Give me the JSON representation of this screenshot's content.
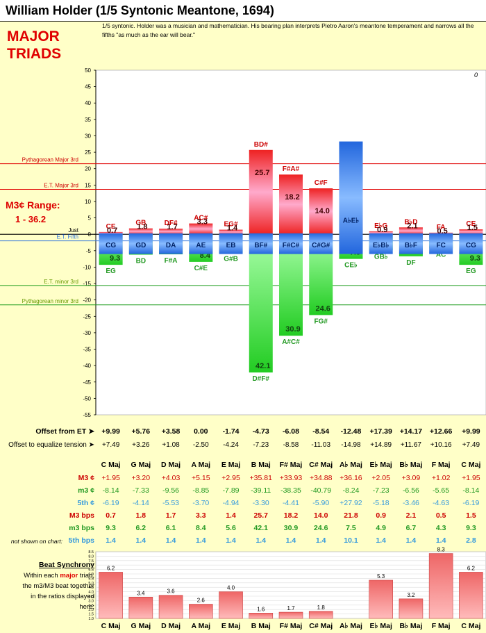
{
  "title": "William Holder (1/5 Syntonic Meantone, 1694)",
  "description": "1/5 syntonic. Holder was a musician and mathematician. His bearing plan interprets Pietro Aaron's meantone temperament and narrows all the fifths \"as much as the ear will bear.\"",
  "section_label": [
    "MAJOR",
    "TRIADS"
  ],
  "range_label": {
    "title": "M3¢ Range:",
    "value": "1 - 36.2"
  },
  "corner_value": "0",
  "colors": {
    "major": "#e00000",
    "minor": "#1a9a1a",
    "fifth": "#3377dd",
    "bg": "#ffffc8"
  },
  "chart_data": [
    {
      "type": "bar",
      "ylim": [
        -55,
        50
      ],
      "yticks": [
        "50",
        "45",
        "40",
        "35",
        "30",
        "25",
        "20",
        "15",
        "10",
        "5",
        "0",
        "-5",
        "-10",
        "-15",
        "-20",
        "-25",
        "-30",
        "-35",
        "-40",
        "-45",
        "-50",
        "-55"
      ],
      "reference_lines": [
        {
          "label": "Pythagorean Major 3rd",
          "value": 21.5,
          "kind": "major"
        },
        {
          "label": "E.T. Major 3rd",
          "value": 13.7,
          "kind": "major"
        },
        {
          "label": "Just",
          "value": 0,
          "kind": "just"
        },
        {
          "label": "E.T. Fifth",
          "value": -2,
          "kind": "fifth"
        },
        {
          "label": "E.T. minor 3rd",
          "value": -15.6,
          "kind": "minor"
        },
        {
          "label": "Pythagorean minor 3rd",
          "value": -21.5,
          "kind": "minor"
        }
      ],
      "categories": [
        "C Maj",
        "G Maj",
        "D Maj",
        "A Maj",
        "E Maj",
        "B Maj",
        "F# Maj",
        "C# Maj",
        "A♭ Maj",
        "E♭ Maj",
        "B♭ Maj",
        "F Maj",
        "C Maj"
      ],
      "major_third_labels": [
        "CE",
        "GB",
        "DF#",
        "AC#",
        "EG#",
        "BD#",
        "F#A#",
        "C#F",
        "A♭C",
        "E♭G",
        "B♭D",
        "FA",
        "CE"
      ],
      "minor_third_labels": [
        "EG",
        "BD",
        "F#A",
        "C#E",
        "G#B",
        "D#F#",
        "A#C#",
        "FG#",
        "CE♭",
        "GB♭",
        "DF",
        "AC",
        "EG"
      ],
      "fifth_labels": [
        "CG",
        "GD",
        "DA",
        "AE",
        "EB",
        "BF#",
        "F#C#",
        "C#G#",
        "A♭E♭",
        "E♭B♭",
        "B♭F",
        "FC",
        "CG"
      ],
      "major_third_beats": [
        0.7,
        1.8,
        1.7,
        3.3,
        1.4,
        25.7,
        18.2,
        14.0,
        21.8,
        0.9,
        2.1,
        0.5,
        1.5
      ],
      "minor_third_beats": [
        9.3,
        6.2,
        6.1,
        8.4,
        5.6,
        42.1,
        30.9,
        24.6,
        7.5,
        4.9,
        6.7,
        4.3,
        9.3
      ],
      "major_third_beat_labels": [
        "0.7",
        "1.8",
        "1.7",
        "3.3",
        "1.4",
        "25.7",
        "18.2",
        "14.0",
        "21.8",
        "0.9",
        "2.1",
        "0.5",
        "1.5"
      ],
      "minor_third_beat_labels": [
        "9.3",
        "6.2",
        "6.1",
        "8.4",
        "5.6",
        "42.1",
        "30.9",
        "24.6",
        "7.5",
        "4.9",
        "6.7",
        "4.3",
        "9.3"
      ],
      "major_third_cents": [
        1.95,
        3.2,
        4.03,
        5.15,
        2.95,
        35.81,
        33.93,
        34.88,
        36.16,
        2.05,
        3.09,
        1.02,
        1.95
      ],
      "minor_third_cents": [
        -8.14,
        -7.33,
        -9.56,
        -8.85,
        -7.89,
        -39.11,
        -38.35,
        -40.79,
        -8.24,
        -7.23,
        -6.56,
        -5.65,
        -8.14
      ],
      "fifth_cents": [
        -6.19,
        -4.14,
        -5.53,
        -3.7,
        -4.94,
        -3.3,
        -4.41,
        -5.9,
        27.92,
        -5.18,
        -3.46,
        -4.63,
        -6.19
      ]
    },
    {
      "type": "bar",
      "title": "Beat Synchrony",
      "ylim": [
        1.0,
        8.5
      ],
      "yticks": [
        "8.5",
        "8.0",
        "7.5",
        "7.0",
        "6.5",
        "6.0",
        "5.5",
        "5.0",
        "4.5",
        "4.0",
        "3.5",
        "3.0",
        "2.5",
        "2.0",
        "1.5",
        "1.0"
      ],
      "categories": [
        "C Maj",
        "G Maj",
        "D Maj",
        "A Maj",
        "E Maj",
        "B Maj",
        "F# Maj",
        "C# Maj",
        "A♭ Maj",
        "E♭ Maj",
        "B♭ Maj",
        "F Maj",
        "C Maj"
      ],
      "values": [
        6.2,
        3.4,
        3.6,
        2.6,
        4.0,
        1.6,
        1.7,
        1.8,
        null,
        5.3,
        3.2,
        8.3,
        6.2
      ],
      "value_labels": [
        "6.2",
        "3.4",
        "3.6",
        "2.6",
        "4.0",
        "1.6",
        "1.7",
        "1.8",
        "",
        "5.3",
        "3.2",
        "8.3",
        "6.2"
      ]
    }
  ],
  "offsets": {
    "label_et": "Offset from ET ➤",
    "values_et": [
      "+9.99",
      "+5.76",
      "+3.58",
      "0.00",
      "-1.74",
      "-4.73",
      "-6.08",
      "-8.54",
      "-12.48",
      "+17.39",
      "+14.17",
      "+12.66",
      "+9.99"
    ],
    "label_eq": "Offset to equalize tension ➤",
    "values_eq": [
      "+7.49",
      "+3.26",
      "+1.08",
      "-2.50",
      "-4.24",
      "-7.23",
      "-8.58",
      "-11.03",
      "-14.98",
      "+14.89",
      "+11.67",
      "+10.16",
      "+7.49"
    ]
  },
  "table": {
    "row_labels": [
      "M3 ¢",
      "m3 ¢",
      "5th ¢",
      "M3 bps",
      "m3 bps",
      "5th bps"
    ],
    "not_shown_label": "not shown on chart:",
    "m3_cents_labels": [
      "+1.95",
      "+3.20",
      "+4.03",
      "+5.15",
      "+2.95",
      "+35.81",
      "+33.93",
      "+34.88",
      "+36.16",
      "+2.05",
      "+3.09",
      "+1.02",
      "+1.95"
    ],
    "minor_cents_labels": [
      "-8.14",
      "-7.33",
      "-9.56",
      "-8.85",
      "-7.89",
      "-39.11",
      "-38.35",
      "-40.79",
      "-8.24",
      "-7.23",
      "-6.56",
      "-5.65",
      "-8.14"
    ],
    "fifth_cents_labels": [
      "-6.19",
      "-4.14",
      "-5.53",
      "-3.70",
      "-4.94",
      "-3.30",
      "-4.41",
      "-5.90",
      "+27.92",
      "-5.18",
      "-3.46",
      "-4.63",
      "-6.19"
    ],
    "fifth_bps": [
      "1.4",
      "1.4",
      "1.4",
      "1.4",
      "1.4",
      "1.4",
      "1.4",
      "1.4",
      "10.1",
      "1.4",
      "1.4",
      "1.4",
      "2.8"
    ]
  },
  "beat_text": {
    "heading": "Beat Synchrony",
    "line1a": "Within each ",
    "line1b": "major",
    "line1c": " triad,",
    "line2": "the m3/M3 beat together",
    "line3": "in the ratios displayed",
    "line4": "here:"
  }
}
